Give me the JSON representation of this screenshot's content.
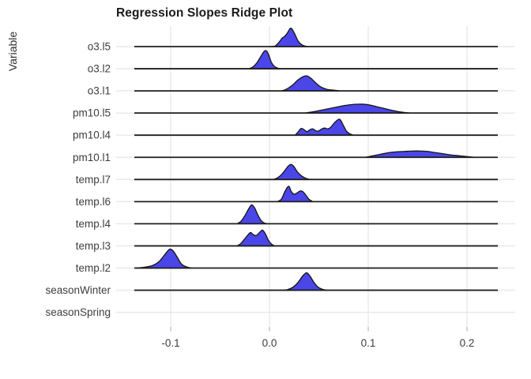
{
  "chart_data": {
    "type": "area",
    "variant": "ridgeline",
    "title": "Regression Slopes Ridge Plot",
    "xlabel": "",
    "ylabel": "Variable",
    "x_ticks": [
      -0.1,
      0.0,
      0.1,
      0.2
    ],
    "x_tick_labels": [
      "-0.1",
      "0.0",
      "0.1",
      "0.2"
    ],
    "xlim": [
      -0.155,
      0.249
    ],
    "grid": true,
    "legend": "none",
    "fill_color": "#4B46E8",
    "outline_color": "#141414",
    "baseline_color": "#1f1f1f",
    "gridline_color": "#e8e8e8",
    "tick_color": "#c2c2c2",
    "text_color": "#3d3d3d",
    "height_units": "pixels above row baseline",
    "series": [
      {
        "name": "o3.l5",
        "baseline": true,
        "peak_x": 0.021,
        "density": [
          [
            0.002,
            0
          ],
          [
            0.006,
            1
          ],
          [
            0.01,
            6
          ],
          [
            0.013,
            11
          ],
          [
            0.015,
            12.5
          ],
          [
            0.018,
            17
          ],
          [
            0.021,
            23
          ],
          [
            0.023,
            22
          ],
          [
            0.026,
            15
          ],
          [
            0.029,
            7
          ],
          [
            0.032,
            3
          ],
          [
            0.035,
            1
          ],
          [
            0.039,
            0
          ]
        ]
      },
      {
        "name": "o3.l2",
        "baseline": true,
        "peak_x": -0.004,
        "density": [
          [
            -0.021,
            0
          ],
          [
            -0.017,
            2
          ],
          [
            -0.013,
            7
          ],
          [
            -0.009,
            15
          ],
          [
            -0.006,
            21
          ],
          [
            -0.004,
            23
          ],
          [
            -0.002,
            21
          ],
          [
            0.0,
            15
          ],
          [
            0.002,
            8
          ],
          [
            0.005,
            3
          ],
          [
            0.008,
            1
          ],
          [
            0.011,
            0
          ]
        ]
      },
      {
        "name": "o3.l1",
        "baseline": true,
        "peak_x": 0.038,
        "density": [
          [
            0.012,
            0
          ],
          [
            0.017,
            2
          ],
          [
            0.023,
            7
          ],
          [
            0.029,
            14
          ],
          [
            0.034,
            18
          ],
          [
            0.038,
            19
          ],
          [
            0.042,
            16
          ],
          [
            0.047,
            10
          ],
          [
            0.052,
            5
          ],
          [
            0.058,
            2
          ],
          [
            0.065,
            1
          ],
          [
            0.072,
            0
          ]
        ]
      },
      {
        "name": "pm10.l5",
        "baseline": true,
        "peak_x": 0.09,
        "density": [
          [
            0.036,
            0
          ],
          [
            0.046,
            2
          ],
          [
            0.056,
            4.5
          ],
          [
            0.066,
            7
          ],
          [
            0.076,
            9.5
          ],
          [
            0.086,
            11
          ],
          [
            0.094,
            11.2
          ],
          [
            0.102,
            10
          ],
          [
            0.112,
            7
          ],
          [
            0.122,
            4
          ],
          [
            0.132,
            1.5
          ],
          [
            0.142,
            0
          ]
        ]
      },
      {
        "name": "pm10.l4",
        "baseline": true,
        "peak_x": 0.072,
        "density": [
          [
            0.026,
            0
          ],
          [
            0.029,
            4
          ],
          [
            0.032,
            8.5
          ],
          [
            0.035,
            7
          ],
          [
            0.038,
            4.5
          ],
          [
            0.041,
            7
          ],
          [
            0.044,
            8
          ],
          [
            0.047,
            5.5
          ],
          [
            0.05,
            5.5
          ],
          [
            0.053,
            8
          ],
          [
            0.056,
            9
          ],
          [
            0.059,
            8
          ],
          [
            0.062,
            10
          ],
          [
            0.066,
            16
          ],
          [
            0.07,
            20
          ],
          [
            0.072,
            19
          ],
          [
            0.075,
            12
          ],
          [
            0.078,
            5
          ],
          [
            0.081,
            2
          ],
          [
            0.085,
            0
          ]
        ]
      },
      {
        "name": "pm10.l1",
        "baseline": true,
        "peak_x": 0.15,
        "density": [
          [
            0.097,
            0
          ],
          [
            0.105,
            2
          ],
          [
            0.113,
            4
          ],
          [
            0.121,
            6
          ],
          [
            0.129,
            7
          ],
          [
            0.137,
            7.5
          ],
          [
            0.145,
            8
          ],
          [
            0.153,
            8
          ],
          [
            0.16,
            7.5
          ],
          [
            0.168,
            6
          ],
          [
            0.176,
            4.5
          ],
          [
            0.184,
            3
          ],
          [
            0.192,
            2
          ],
          [
            0.2,
            1
          ],
          [
            0.208,
            0
          ]
        ]
      },
      {
        "name": "temp.l7",
        "baseline": true,
        "peak_x": 0.022,
        "density": [
          [
            0.004,
            0
          ],
          [
            0.008,
            2
          ],
          [
            0.012,
            6
          ],
          [
            0.016,
            12
          ],
          [
            0.019,
            17
          ],
          [
            0.022,
            19
          ],
          [
            0.025,
            16
          ],
          [
            0.028,
            10
          ],
          [
            0.032,
            5
          ],
          [
            0.036,
            2
          ],
          [
            0.041,
            0
          ]
        ]
      },
      {
        "name": "temp.l6",
        "baseline": true,
        "peak_x": 0.019,
        "density": [
          [
            0.008,
            0
          ],
          [
            0.012,
            3
          ],
          [
            0.015,
            11
          ],
          [
            0.018,
            18
          ],
          [
            0.02,
            19
          ],
          [
            0.022,
            13
          ],
          [
            0.025,
            9.5
          ],
          [
            0.028,
            11
          ],
          [
            0.031,
            13.5
          ],
          [
            0.034,
            12.5
          ],
          [
            0.037,
            8
          ],
          [
            0.04,
            3
          ],
          [
            0.044,
            0
          ]
        ]
      },
      {
        "name": "temp.l4",
        "baseline": true,
        "peak_x": -0.018,
        "density": [
          [
            -0.033,
            0
          ],
          [
            -0.029,
            3
          ],
          [
            -0.025,
            10
          ],
          [
            -0.021,
            19
          ],
          [
            -0.018,
            24
          ],
          [
            -0.015,
            20
          ],
          [
            -0.012,
            12
          ],
          [
            -0.009,
            5
          ],
          [
            -0.006,
            1.5
          ],
          [
            -0.002,
            0
          ]
        ]
      },
      {
        "name": "temp.l3",
        "baseline": true,
        "peak_x": -0.008,
        "density": [
          [
            -0.033,
            0
          ],
          [
            -0.029,
            3
          ],
          [
            -0.025,
            9
          ],
          [
            -0.021,
            15
          ],
          [
            -0.019,
            17
          ],
          [
            -0.016,
            14
          ],
          [
            -0.013,
            13.5
          ],
          [
            -0.01,
            17
          ],
          [
            -0.007,
            20
          ],
          [
            -0.004,
            15
          ],
          [
            -0.001,
            7
          ],
          [
            0.002,
            2.5
          ],
          [
            0.005,
            0
          ]
        ]
      },
      {
        "name": "temp.l2",
        "baseline": true,
        "peak_x": -0.101,
        "density": [
          [
            -0.136,
            0
          ],
          [
            -0.127,
            1
          ],
          [
            -0.119,
            3
          ],
          [
            -0.112,
            8
          ],
          [
            -0.106,
            17
          ],
          [
            -0.102,
            23
          ],
          [
            -0.1,
            24
          ],
          [
            -0.097,
            21
          ],
          [
            -0.093,
            13
          ],
          [
            -0.089,
            5
          ],
          [
            -0.084,
            1.5
          ],
          [
            -0.079,
            0
          ]
        ]
      },
      {
        "name": "seasonWinter",
        "baseline": true,
        "peak_x": 0.037,
        "density": [
          [
            0.014,
            0
          ],
          [
            0.019,
            1
          ],
          [
            0.024,
            4
          ],
          [
            0.029,
            10
          ],
          [
            0.033,
            17
          ],
          [
            0.036,
            21
          ],
          [
            0.038,
            22
          ],
          [
            0.041,
            18
          ],
          [
            0.045,
            10
          ],
          [
            0.049,
            4
          ],
          [
            0.053,
            1.5
          ],
          [
            0.058,
            0
          ]
        ]
      },
      {
        "name": "seasonSpring",
        "baseline": false,
        "peak_x": null,
        "density": []
      }
    ]
  }
}
